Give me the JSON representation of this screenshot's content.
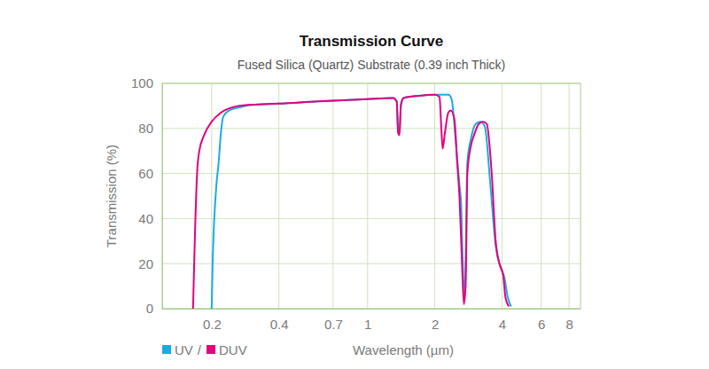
{
  "chart_data": {
    "type": "line",
    "title": "Transmission Curve",
    "subtitle": "Fused Silica (Quartz) Substrate (0.39 inch Thick)",
    "x_label": "Wavelength (µm)",
    "y_label": "Transmission (%)",
    "log": "x",
    "xlim": [
      0.12,
      9
    ],
    "xticks": [
      0.2,
      0.4,
      0.7,
      1,
      2,
      4,
      6,
      8
    ],
    "ylim": [
      0,
      100
    ],
    "yticks": [
      0,
      20,
      40,
      60,
      80,
      100
    ],
    "grid": true,
    "legend": "bottom-left",
    "legend_separator": "/",
    "series": [
      {
        "name": "UV",
        "color": "#1aace0",
        "x": [
          0.2,
          0.202,
          0.205,
          0.21,
          0.215,
          0.22,
          0.225,
          0.24,
          0.27,
          0.3,
          0.4,
          0.6,
          1.0,
          1.3,
          1.35,
          1.37,
          1.39,
          1.41,
          1.45,
          1.7,
          2.0,
          2.3,
          2.38,
          2.48,
          2.58,
          2.62,
          2.68,
          2.72,
          2.76,
          2.8,
          2.9,
          3.05,
          3.2,
          3.35,
          3.55,
          3.75,
          3.95,
          4.1,
          4.25,
          4.4
        ],
        "values": [
          0,
          20,
          38,
          55,
          65,
          78,
          85,
          88,
          89.5,
          90.5,
          91,
          92,
          93,
          93.5,
          92,
          80,
          79,
          91,
          93.5,
          94.5,
          95,
          95,
          93,
          75,
          55,
          48,
          15,
          5,
          30,
          65,
          75,
          82,
          83,
          81,
          55,
          28,
          18,
          14,
          5,
          1
        ]
      },
      {
        "name": "DUV",
        "color": "#e4007f",
        "x": [
          0.165,
          0.168,
          0.172,
          0.176,
          0.185,
          0.2,
          0.22,
          0.25,
          0.3,
          0.4,
          0.6,
          1.0,
          1.3,
          1.35,
          1.37,
          1.39,
          1.41,
          1.45,
          1.7,
          2.0,
          2.1,
          2.14,
          2.17,
          2.22,
          2.3,
          2.36,
          2.45,
          2.52,
          2.58,
          2.65,
          2.7,
          2.75,
          2.8,
          2.9,
          3.0,
          3.15,
          3.3,
          3.42,
          3.6,
          3.75,
          3.9,
          4.05,
          4.15,
          4.3
        ],
        "values": [
          0,
          30,
          60,
          70,
          77,
          83,
          87,
          89.5,
          90.5,
          91,
          92,
          93,
          93.5,
          92,
          78,
          77,
          90,
          93.5,
          94.5,
          95,
          94,
          80,
          71,
          78,
          87,
          88,
          84,
          65,
          50,
          20,
          2,
          10,
          60,
          72,
          77,
          82,
          83,
          82,
          60,
          30,
          20,
          15,
          5,
          1
        ]
      }
    ]
  }
}
